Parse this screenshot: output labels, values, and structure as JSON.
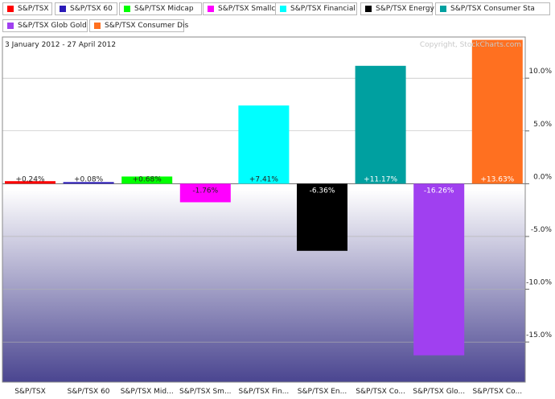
{
  "chart_data": {
    "type": "bar",
    "date_range": "3 January 2012 - 27 April 2012",
    "copyright": "Copyright, StockCharts.com",
    "categories": [
      "S&P/TSX",
      "S&P/TSX 60",
      "S&P/TSX Mid...",
      "S&P/TSX Sm...",
      "S&P/TSX Fin...",
      "S&P/TSX En...",
      "S&P/TSX Co...",
      "S&P/TSX Glo...",
      "S&P/TSX Co..."
    ],
    "values": [
      0.24,
      0.08,
      0.68,
      -1.76,
      7.41,
      -6.36,
      11.17,
      -16.26,
      13.63
    ],
    "data_labels": [
      "+0.24%",
      "+0.08%",
      "+0.68%",
      "-1.76%",
      "+7.41%",
      "-6.36%",
      "+11.17%",
      "-16.26%",
      "+13.63%"
    ],
    "colors": [
      "#ff0000",
      "#2a1ab8",
      "#00ff00",
      "#ff00ff",
      "#00ffff",
      "#000000",
      "#00a0a0",
      "#a040f0",
      "#ff7020"
    ],
    "legend": [
      {
        "label": "S&P/TSX",
        "color": "#ff0000"
      },
      {
        "label": "S&P/TSX 60",
        "color": "#2a1ab8"
      },
      {
        "label": "S&P/TSX Midcap",
        "color": "#00ff00"
      },
      {
        "label": "S&P/TSX Smallcap",
        "color": "#ff00ff"
      },
      {
        "label": "S&P/TSX Financial",
        "color": "#00ffff"
      },
      {
        "label": "S&P/TSX Energy",
        "color": "#000000"
      },
      {
        "label": "S&P/TSX Consumer Sta",
        "color": "#00a0a0"
      },
      {
        "label": "S&P/TSX Glob Gold",
        "color": "#a040f0"
      },
      {
        "label": "S&P/TSX Consumer Dis",
        "color": "#ff7020"
      }
    ],
    "y_ticks": [
      10,
      5,
      0,
      -5,
      -10,
      -15
    ],
    "y_tick_labels": [
      "10.0%",
      "5.0%",
      "0.0%",
      "-5.0%",
      "-10.0%",
      "-15.0%"
    ],
    "ylim": [
      -18.8,
      13.9
    ],
    "grid": true,
    "legend_position": "top"
  }
}
